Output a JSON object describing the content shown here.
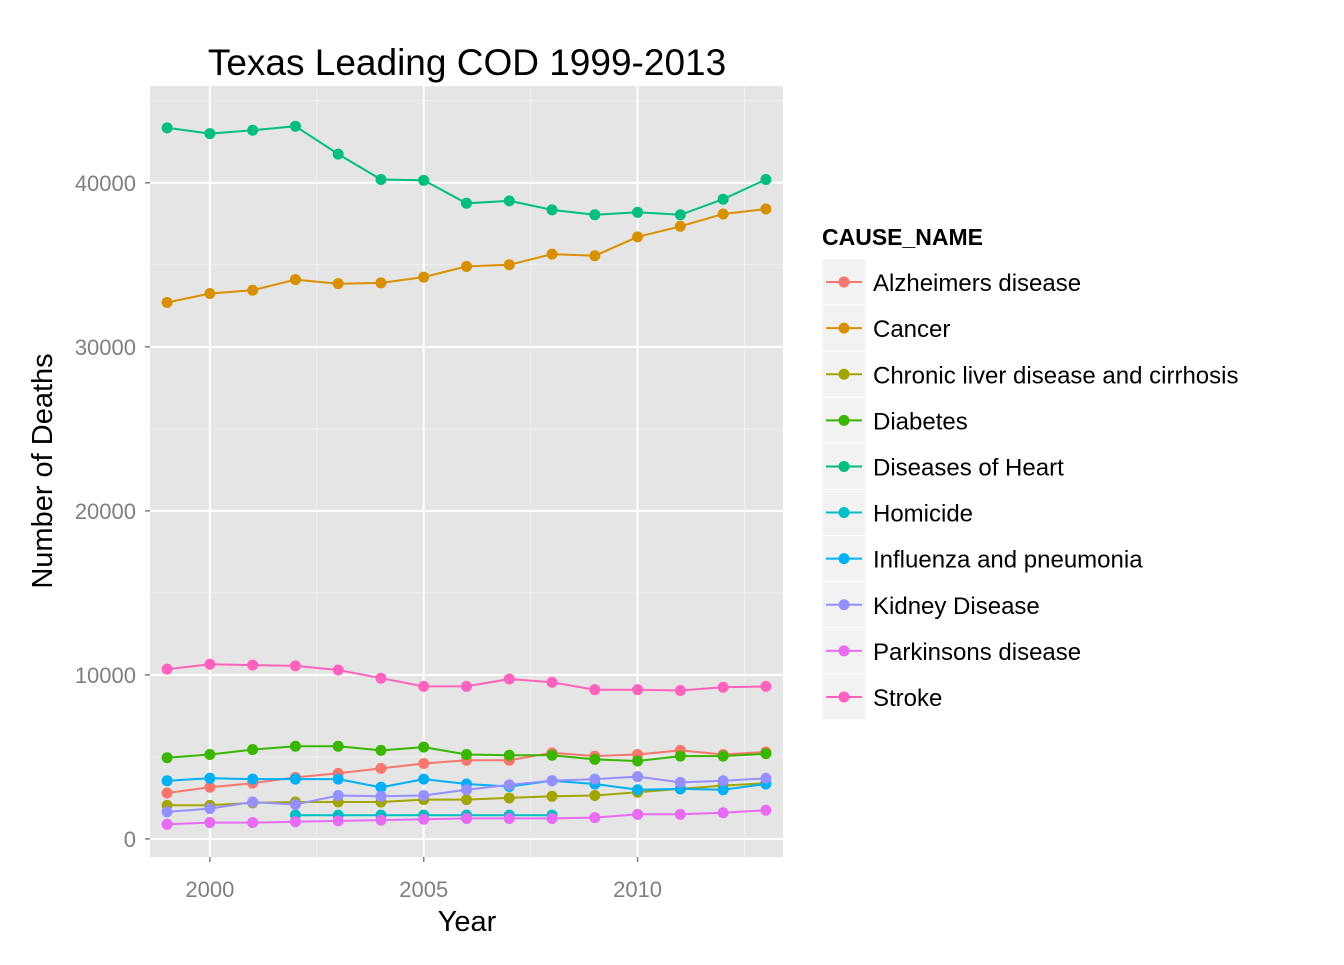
{
  "chart_data": {
    "type": "line",
    "title": "Texas Leading COD 1999-2013",
    "xlabel": "Year",
    "ylabel": "Number of Deaths",
    "xlim": [
      1998.6,
      2013.4
    ],
    "ylim": [
      -1100,
      45900
    ],
    "x_ticks": [
      2000,
      2005,
      2010
    ],
    "x_tick_labels": [
      "2000",
      "2005",
      "2010"
    ],
    "y_ticks": [
      0,
      10000,
      20000,
      30000,
      40000
    ],
    "y_tick_labels": [
      "0",
      "10000",
      "20000",
      "30000",
      "40000"
    ],
    "grid": true,
    "panel_background": "#e5e5e5",
    "legend": {
      "title": "CAUSE_NAME",
      "position": "right"
    },
    "series": [
      {
        "name": "Alzheimers disease",
        "color": "#f8766d",
        "x": [
          1999,
          2000,
          2001,
          2002,
          2003,
          2004,
          2005,
          2006,
          2007,
          2008,
          2009,
          2010,
          2011,
          2012,
          2013
        ],
        "values": [
          2800,
          3150,
          3400,
          3750,
          4000,
          4300,
          4600,
          4800,
          4800,
          5250,
          5050,
          5150,
          5400,
          5150,
          5300
        ]
      },
      {
        "name": "Cancer",
        "color": "#d89000",
        "x": [
          1999,
          2000,
          2001,
          2002,
          2003,
          2004,
          2005,
          2006,
          2007,
          2008,
          2009,
          2010,
          2011,
          2012,
          2013
        ],
        "values": [
          32700,
          33250,
          33450,
          34100,
          33850,
          33900,
          34250,
          34900,
          35000,
          35650,
          35550,
          36700,
          37350,
          38100,
          38400
        ]
      },
      {
        "name": "Chronic liver disease and cirrhosis",
        "color": "#a3a500",
        "x": [
          1999,
          2000,
          2001,
          2002,
          2003,
          2004,
          2005,
          2006,
          2007,
          2008,
          2009,
          2010,
          2011,
          2012,
          2013
        ],
        "values": [
          2050,
          2050,
          2200,
          2250,
          2250,
          2250,
          2400,
          2400,
          2500,
          2600,
          2650,
          2850,
          3050,
          3250,
          3400
        ]
      },
      {
        "name": "Diabetes",
        "color": "#39b600",
        "x": [
          1999,
          2000,
          2001,
          2002,
          2003,
          2004,
          2005,
          2006,
          2007,
          2008,
          2009,
          2010,
          2011,
          2012,
          2013
        ],
        "values": [
          4950,
          5150,
          5450,
          5650,
          5650,
          5400,
          5600,
          5150,
          5100,
          5100,
          4850,
          4750,
          5050,
          5050,
          5200
        ]
      },
      {
        "name": "Diseases of Heart",
        "color": "#00bf7d",
        "x": [
          1999,
          2000,
          2001,
          2002,
          2003,
          2004,
          2005,
          2006,
          2007,
          2008,
          2009,
          2010,
          2011,
          2012,
          2013
        ],
        "values": [
          43350,
          43000,
          43200,
          43450,
          41750,
          40200,
          40150,
          38750,
          38900,
          38350,
          38050,
          38200,
          38050,
          39000,
          40200
        ]
      },
      {
        "name": "Homicide",
        "color": "#00bfc4",
        "x": [
          2002,
          2003,
          2004,
          2005,
          2006,
          2007,
          2008
        ],
        "values": [
          1450,
          1450,
          1450,
          1450,
          1450,
          1450,
          1450
        ]
      },
      {
        "name": "Influenza and pneumonia",
        "color": "#00b0f6",
        "x": [
          1999,
          2000,
          2001,
          2002,
          2003,
          2004,
          2005,
          2006,
          2007,
          2008,
          2009,
          2010,
          2011,
          2012,
          2013
        ],
        "values": [
          3550,
          3700,
          3650,
          3650,
          3650,
          3150,
          3650,
          3350,
          3200,
          3550,
          3350,
          3000,
          3050,
          3000,
          3350
        ]
      },
      {
        "name": "Kidney Disease",
        "color": "#9590ff",
        "x": [
          1999,
          2000,
          2001,
          2002,
          2003,
          2004,
          2005,
          2006,
          2007,
          2008,
          2009,
          2010,
          2011,
          2012,
          2013
        ],
        "values": [
          1650,
          1850,
          2250,
          2100,
          2650,
          2600,
          2650,
          3000,
          3300,
          3550,
          3650,
          3800,
          3450,
          3550,
          3700
        ]
      },
      {
        "name": "Parkinsons disease",
        "color": "#e76bf3",
        "x": [
          1999,
          2000,
          2001,
          2002,
          2003,
          2004,
          2005,
          2006,
          2007,
          2008,
          2009,
          2010,
          2011,
          2012,
          2013
        ],
        "values": [
          900,
          1000,
          1000,
          1050,
          1100,
          1150,
          1200,
          1250,
          1250,
          1250,
          1300,
          1500,
          1500,
          1600,
          1750
        ]
      },
      {
        "name": "Stroke",
        "color": "#ff62bc",
        "x": [
          1999,
          2000,
          2001,
          2002,
          2003,
          2004,
          2005,
          2006,
          2007,
          2008,
          2009,
          2010,
          2011,
          2012,
          2013
        ],
        "values": [
          10350,
          10650,
          10600,
          10550,
          10300,
          9800,
          9300,
          9300,
          9750,
          9550,
          9100,
          9100,
          9050,
          9250,
          9300
        ]
      }
    ]
  }
}
